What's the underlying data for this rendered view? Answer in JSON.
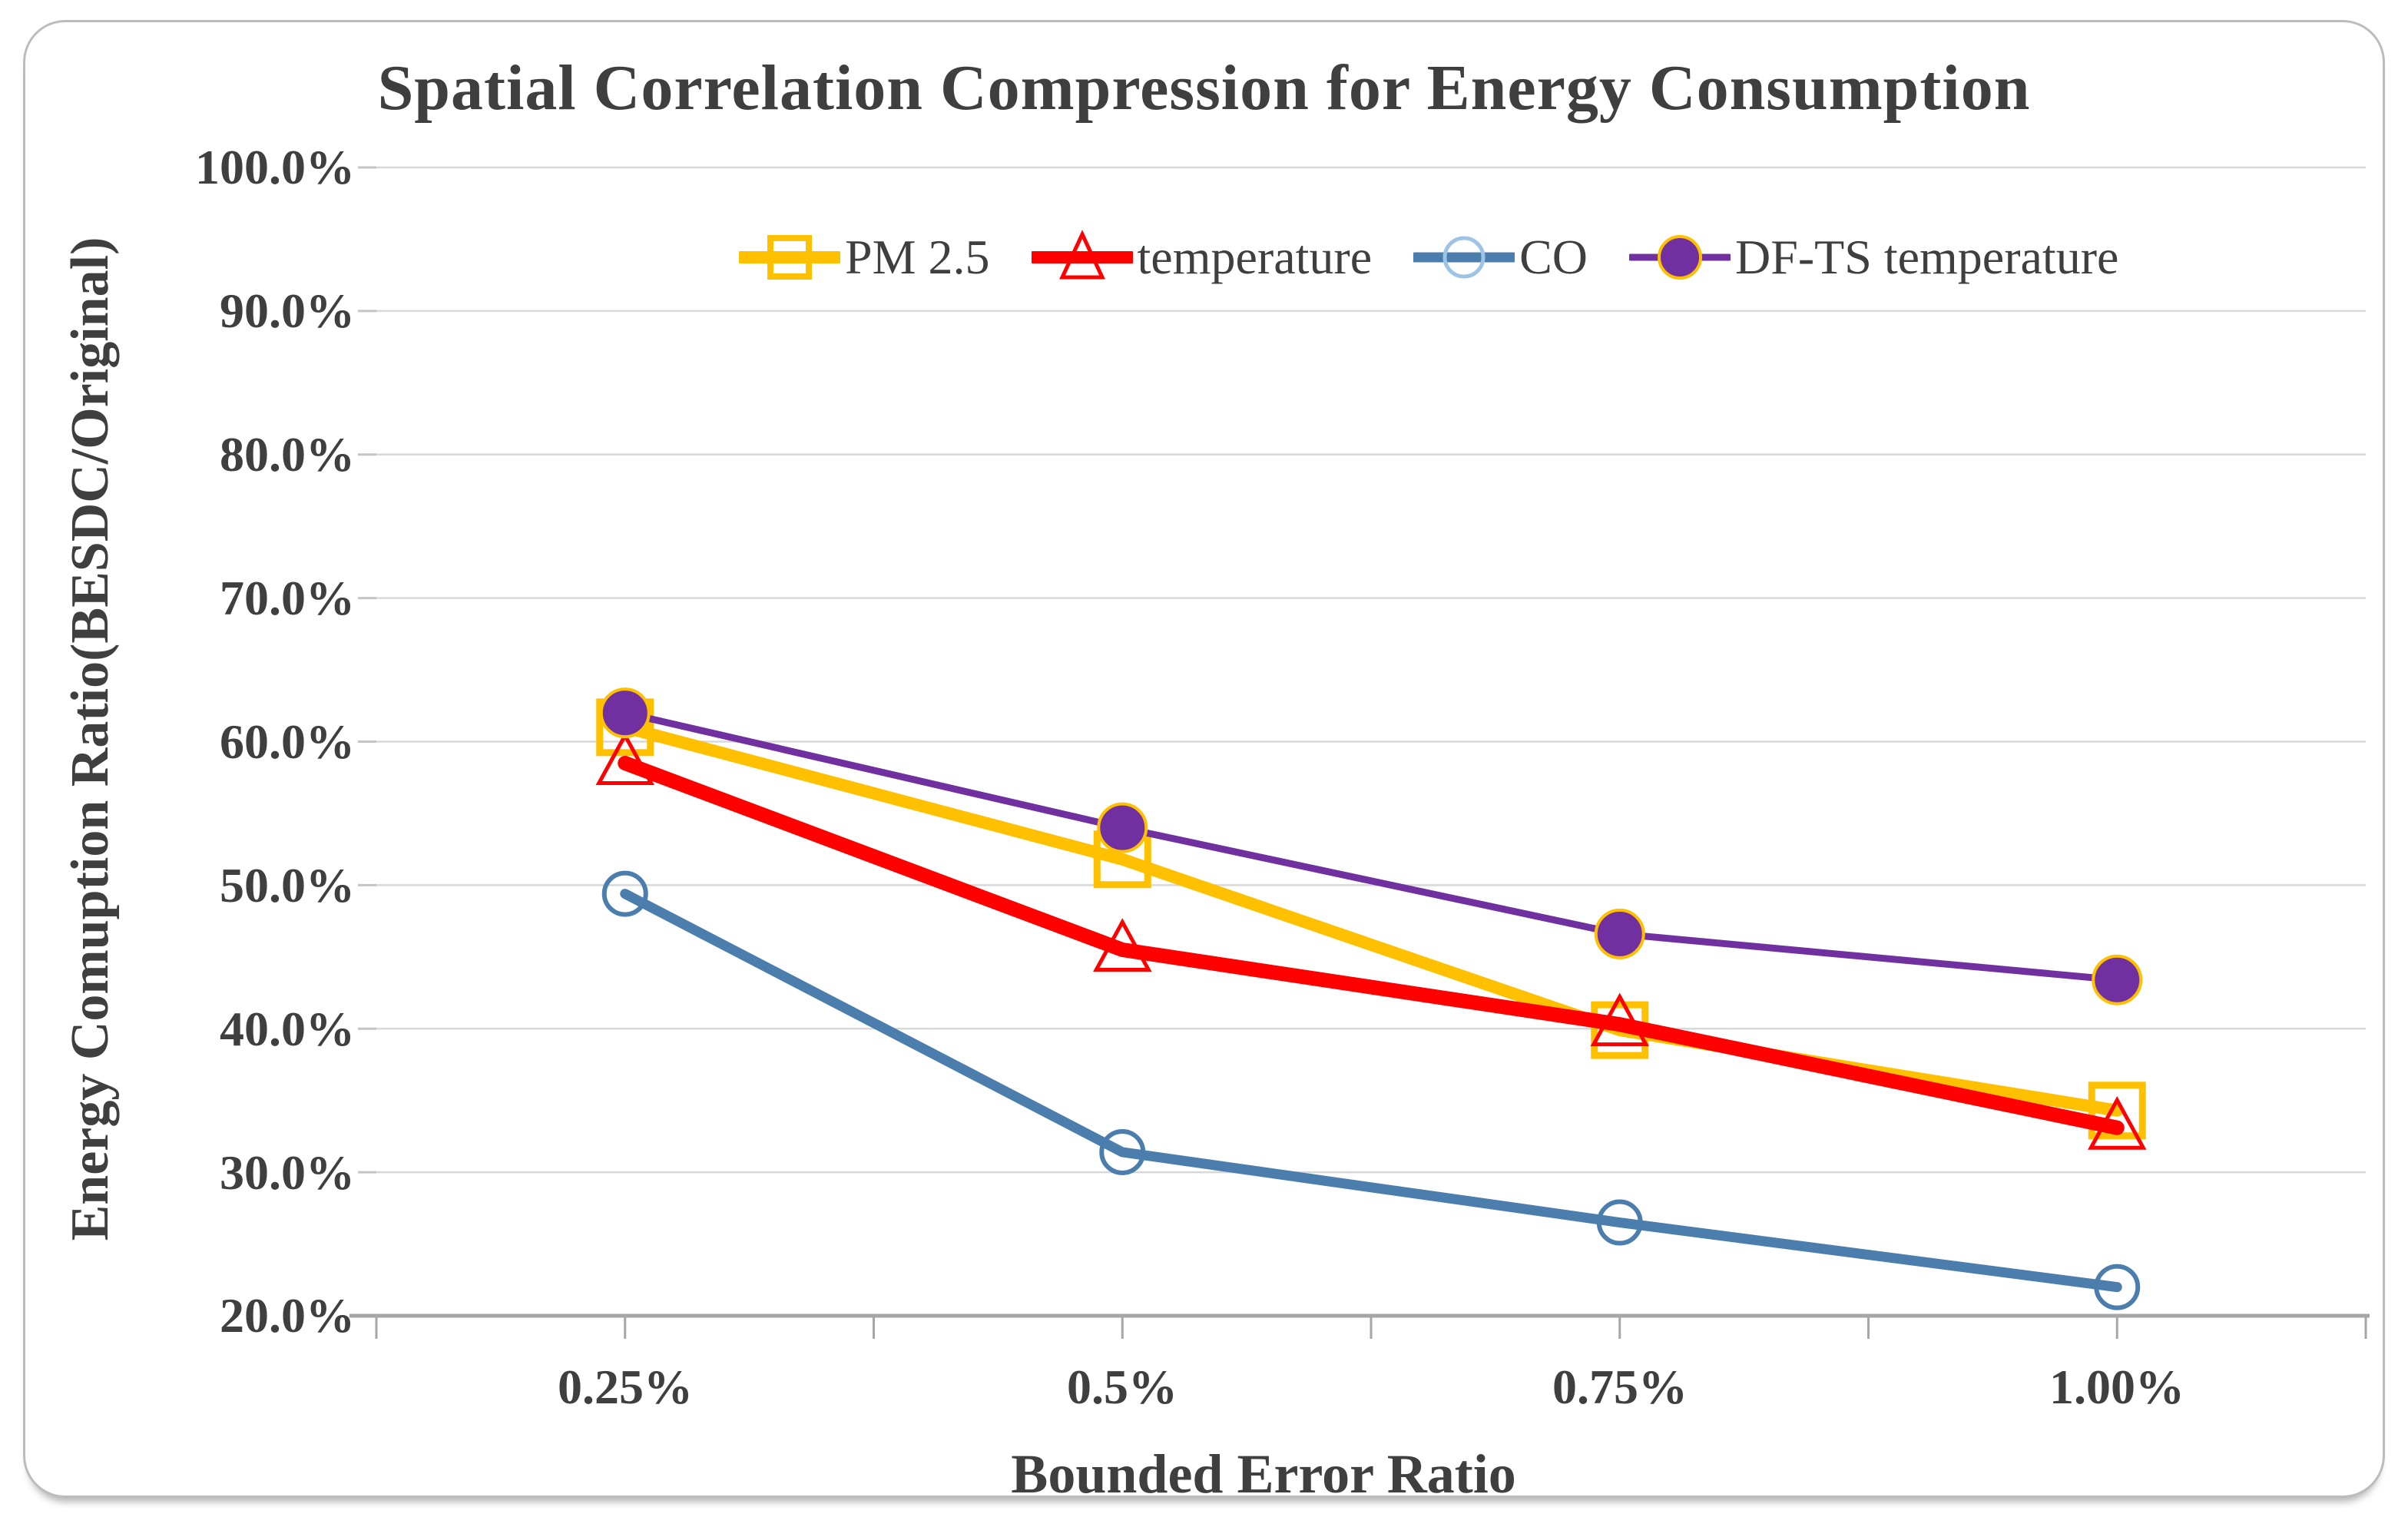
{
  "chart_data": {
    "type": "line",
    "title": "Spatial Correlation Compression for Energy Consumption",
    "xlabel": "Bounded Error Ratio",
    "ylabel": "Energy Comuption Ratio(BESDC/Original)",
    "categories": [
      "0.25%",
      "0.5%",
      "0.75%",
      "1.00%"
    ],
    "y_tick_labels": [
      "100.0%",
      "90.0%",
      "80.0%",
      "70.0%",
      "60.0%",
      "50.0%",
      "40.0%",
      "30.0%",
      "20.0%"
    ],
    "ylim": [
      20,
      100
    ],
    "y_major_step": 10,
    "grid": "horizontal",
    "legend_position": "top-inside",
    "series": [
      {
        "name": "PM 2.5",
        "color": "#FFC000",
        "marker": "open-square",
        "line_width": 16,
        "values": [
          61.0,
          51.8,
          39.9,
          34.3
        ]
      },
      {
        "name": "temperature",
        "color": "#FF0000",
        "marker": "open-triangle",
        "line_width": 19,
        "values": [
          58.5,
          45.5,
          40.3,
          33.1
        ]
      },
      {
        "name": "CO",
        "color": "#4B7EAC",
        "marker": "open-circle",
        "line_width": 13,
        "values": [
          49.4,
          31.4,
          26.5,
          22.0
        ],
        "legend_marker_color": "#9DC3E6"
      },
      {
        "name": "DF-TS temperature",
        "color": "#7030A0",
        "marker": "filled-circle",
        "line_width": 9,
        "values": [
          62.0,
          54.0,
          46.6,
          43.4
        ],
        "marker_rim": "#FFC000"
      }
    ]
  },
  "frame": {
    "border_color": "#BCBCBC",
    "grid_color": "#D8D8D8",
    "axis_color": "#A6A6A6",
    "text_color": "#3F3F3F"
  }
}
